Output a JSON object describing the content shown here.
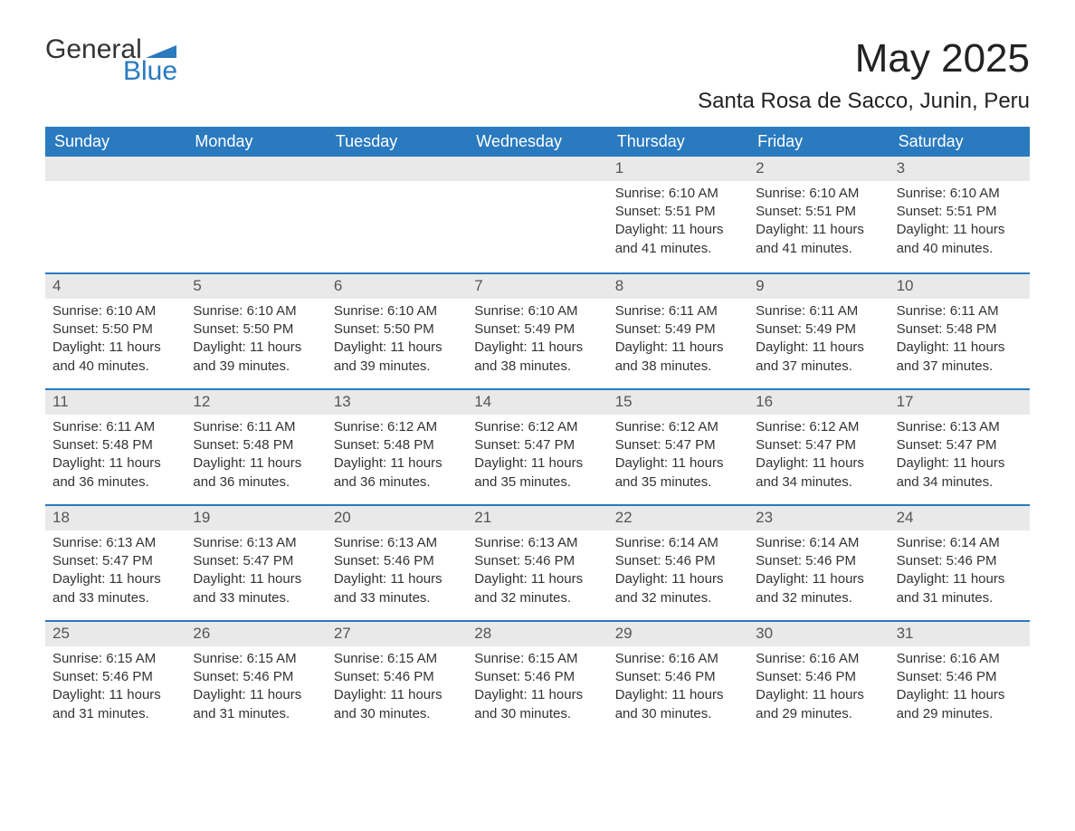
{
  "logo": {
    "word1": "General",
    "word2": "Blue"
  },
  "title": "May 2025",
  "location": "Santa Rosa de Sacco, Junin, Peru",
  "colors": {
    "brand_blue": "#2a7abf",
    "header_text": "#ffffff",
    "daybar_bg": "#e9e9e9",
    "text": "#333333",
    "background": "#ffffff"
  },
  "day_headers": [
    "Sunday",
    "Monday",
    "Tuesday",
    "Wednesday",
    "Thursday",
    "Friday",
    "Saturday"
  ],
  "weeks": [
    [
      null,
      null,
      null,
      null,
      {
        "num": "1",
        "sunrise": "6:10 AM",
        "sunset": "5:51 PM",
        "daylight": "11 hours and 41 minutes."
      },
      {
        "num": "2",
        "sunrise": "6:10 AM",
        "sunset": "5:51 PM",
        "daylight": "11 hours and 41 minutes."
      },
      {
        "num": "3",
        "sunrise": "6:10 AM",
        "sunset": "5:51 PM",
        "daylight": "11 hours and 40 minutes."
      }
    ],
    [
      {
        "num": "4",
        "sunrise": "6:10 AM",
        "sunset": "5:50 PM",
        "daylight": "11 hours and 40 minutes."
      },
      {
        "num": "5",
        "sunrise": "6:10 AM",
        "sunset": "5:50 PM",
        "daylight": "11 hours and 39 minutes."
      },
      {
        "num": "6",
        "sunrise": "6:10 AM",
        "sunset": "5:50 PM",
        "daylight": "11 hours and 39 minutes."
      },
      {
        "num": "7",
        "sunrise": "6:10 AM",
        "sunset": "5:49 PM",
        "daylight": "11 hours and 38 minutes."
      },
      {
        "num": "8",
        "sunrise": "6:11 AM",
        "sunset": "5:49 PM",
        "daylight": "11 hours and 38 minutes."
      },
      {
        "num": "9",
        "sunrise": "6:11 AM",
        "sunset": "5:49 PM",
        "daylight": "11 hours and 37 minutes."
      },
      {
        "num": "10",
        "sunrise": "6:11 AM",
        "sunset": "5:48 PM",
        "daylight": "11 hours and 37 minutes."
      }
    ],
    [
      {
        "num": "11",
        "sunrise": "6:11 AM",
        "sunset": "5:48 PM",
        "daylight": "11 hours and 36 minutes."
      },
      {
        "num": "12",
        "sunrise": "6:11 AM",
        "sunset": "5:48 PM",
        "daylight": "11 hours and 36 minutes."
      },
      {
        "num": "13",
        "sunrise": "6:12 AM",
        "sunset": "5:48 PM",
        "daylight": "11 hours and 36 minutes."
      },
      {
        "num": "14",
        "sunrise": "6:12 AM",
        "sunset": "5:47 PM",
        "daylight": "11 hours and 35 minutes."
      },
      {
        "num": "15",
        "sunrise": "6:12 AM",
        "sunset": "5:47 PM",
        "daylight": "11 hours and 35 minutes."
      },
      {
        "num": "16",
        "sunrise": "6:12 AM",
        "sunset": "5:47 PM",
        "daylight": "11 hours and 34 minutes."
      },
      {
        "num": "17",
        "sunrise": "6:13 AM",
        "sunset": "5:47 PM",
        "daylight": "11 hours and 34 minutes."
      }
    ],
    [
      {
        "num": "18",
        "sunrise": "6:13 AM",
        "sunset": "5:47 PM",
        "daylight": "11 hours and 33 minutes."
      },
      {
        "num": "19",
        "sunrise": "6:13 AM",
        "sunset": "5:47 PM",
        "daylight": "11 hours and 33 minutes."
      },
      {
        "num": "20",
        "sunrise": "6:13 AM",
        "sunset": "5:46 PM",
        "daylight": "11 hours and 33 minutes."
      },
      {
        "num": "21",
        "sunrise": "6:13 AM",
        "sunset": "5:46 PM",
        "daylight": "11 hours and 32 minutes."
      },
      {
        "num": "22",
        "sunrise": "6:14 AM",
        "sunset": "5:46 PM",
        "daylight": "11 hours and 32 minutes."
      },
      {
        "num": "23",
        "sunrise": "6:14 AM",
        "sunset": "5:46 PM",
        "daylight": "11 hours and 32 minutes."
      },
      {
        "num": "24",
        "sunrise": "6:14 AM",
        "sunset": "5:46 PM",
        "daylight": "11 hours and 31 minutes."
      }
    ],
    [
      {
        "num": "25",
        "sunrise": "6:15 AM",
        "sunset": "5:46 PM",
        "daylight": "11 hours and 31 minutes."
      },
      {
        "num": "26",
        "sunrise": "6:15 AM",
        "sunset": "5:46 PM",
        "daylight": "11 hours and 31 minutes."
      },
      {
        "num": "27",
        "sunrise": "6:15 AM",
        "sunset": "5:46 PM",
        "daylight": "11 hours and 30 minutes."
      },
      {
        "num": "28",
        "sunrise": "6:15 AM",
        "sunset": "5:46 PM",
        "daylight": "11 hours and 30 minutes."
      },
      {
        "num": "29",
        "sunrise": "6:16 AM",
        "sunset": "5:46 PM",
        "daylight": "11 hours and 30 minutes."
      },
      {
        "num": "30",
        "sunrise": "6:16 AM",
        "sunset": "5:46 PM",
        "daylight": "11 hours and 29 minutes."
      },
      {
        "num": "31",
        "sunrise": "6:16 AM",
        "sunset": "5:46 PM",
        "daylight": "11 hours and 29 minutes."
      }
    ]
  ],
  "labels": {
    "sunrise_prefix": "Sunrise: ",
    "sunset_prefix": "Sunset: ",
    "daylight_prefix": "Daylight: "
  }
}
